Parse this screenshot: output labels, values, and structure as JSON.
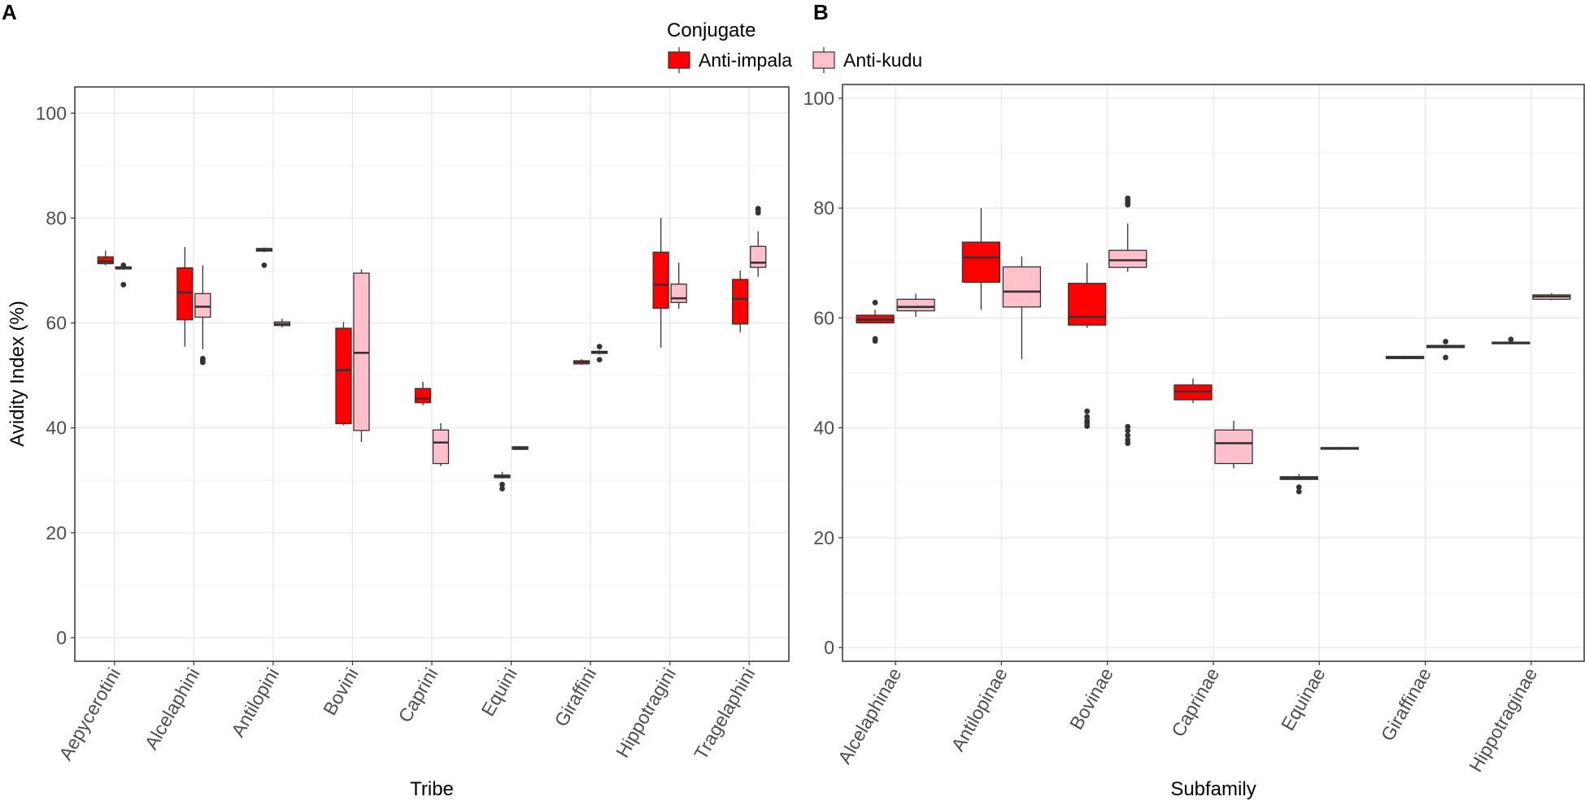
{
  "legend": {
    "title": "Conjugate",
    "items": [
      {
        "label": "Anti-impala",
        "color": "#ff0000"
      },
      {
        "label": "Anti-kudu",
        "color": "#ffc0cb"
      }
    ]
  },
  "chart_data": [
    {
      "panel": "A",
      "type": "box",
      "xlabel": "Tribe",
      "ylabel": "Avidity Index (%)",
      "ylim": [
        -4.5,
        105
      ],
      "yticks": [
        0,
        20,
        40,
        60,
        80,
        100
      ],
      "grid": true,
      "categories": [
        "Aepycerotini",
        "Alcelaphini",
        "Antilopini",
        "Bovini",
        "Caprini",
        "Equini",
        "Giraffini",
        "Hippotragini",
        "Tragelaphini"
      ],
      "series": [
        {
          "name": "Anti-impala",
          "color": "#ff0000",
          "boxes": [
            {
              "min": 71.0,
              "q1": 71.3,
              "median": 71.7,
              "q3": 72.6,
              "max": 73.8,
              "outliers": []
            },
            {
              "min": 55.5,
              "q1": 60.6,
              "median": 65.8,
              "q3": 70.5,
              "max": 74.5,
              "outliers": []
            },
            {
              "min": 73.5,
              "q1": 73.7,
              "median": 74.0,
              "q3": 74.2,
              "max": 74.4,
              "outliers": [
                71.0
              ]
            },
            {
              "min": 40.5,
              "q1": 40.8,
              "median": 51.0,
              "q3": 59.0,
              "max": 60.2,
              "outliers": []
            },
            {
              "min": 44.3,
              "q1": 44.8,
              "median": 45.6,
              "q3": 47.5,
              "max": 48.8,
              "outliers": []
            },
            {
              "min": 30.3,
              "q1": 30.5,
              "median": 30.8,
              "q3": 31.0,
              "max": 31.6,
              "outliers": [
                29.2,
                28.4
              ]
            },
            {
              "min": 52.0,
              "q1": 52.2,
              "median": 52.6,
              "q3": 52.8,
              "max": 53.1,
              "outliers": []
            },
            {
              "min": 55.3,
              "q1": 62.8,
              "median": 67.3,
              "q3": 73.5,
              "max": 80.0,
              "outliers": []
            },
            {
              "min": 58.2,
              "q1": 59.8,
              "median": 64.6,
              "q3": 68.3,
              "max": 70.0,
              "outliers": []
            }
          ]
        },
        {
          "name": "Anti-kudu",
          "color": "#ffc0cb",
          "boxes": [
            {
              "min": 70.1,
              "q1": 70.3,
              "median": 70.5,
              "q3": 70.7,
              "max": 70.9,
              "outliers": [
                71.0,
                67.3
              ]
            },
            {
              "min": 55.0,
              "q1": 61.1,
              "median": 63.1,
              "q3": 65.6,
              "max": 71.0,
              "outliers": [
                53.2,
                52.8,
                52.5
              ]
            },
            {
              "min": 59.2,
              "q1": 59.5,
              "median": 59.8,
              "q3": 60.2,
              "max": 60.8,
              "outliers": []
            },
            {
              "min": 37.3,
              "q1": 39.5,
              "median": 54.3,
              "q3": 69.5,
              "max": 70.2,
              "outliers": []
            },
            {
              "min": 32.7,
              "q1": 33.2,
              "median": 37.2,
              "q3": 39.6,
              "max": 40.9,
              "outliers": []
            },
            {
              "min": 35.8,
              "q1": 35.9,
              "median": 36.2,
              "q3": 36.4,
              "max": 36.5,
              "outliers": []
            },
            {
              "min": 54.0,
              "q1": 54.2,
              "median": 54.4,
              "q3": 54.6,
              "max": 54.8,
              "outliers": [
                55.5,
                53.0
              ]
            },
            {
              "min": 62.7,
              "q1": 63.9,
              "median": 64.7,
              "q3": 67.4,
              "max": 71.5,
              "outliers": []
            },
            {
              "min": 68.8,
              "q1": 70.6,
              "median": 71.5,
              "q3": 74.6,
              "max": 77.5,
              "outliers": [
                81.0,
                81.5,
                81.8
              ]
            }
          ]
        }
      ]
    },
    {
      "panel": "B",
      "type": "box",
      "xlabel": "Subfamily",
      "ylabel": "",
      "ylim": [
        -2.5,
        102.5
      ],
      "yticks": [
        0,
        20,
        40,
        60,
        80,
        100
      ],
      "grid": true,
      "categories": [
        "Alcelaphinae",
        "Antilopinae",
        "Bovinae",
        "Caprinae",
        "Equinae",
        "Giraffinae",
        "Hippotraginae"
      ],
      "series": [
        {
          "name": "Anti-impala",
          "color": "#ff0000",
          "boxes": [
            {
              "min": 59.0,
              "q1": 59.1,
              "median": 59.7,
              "q3": 60.5,
              "max": 61.5,
              "outliers": [
                62.8,
                56.2,
                55.8
              ]
            },
            {
              "min": 61.5,
              "q1": 66.5,
              "median": 71.0,
              "q3": 73.8,
              "max": 80.0,
              "outliers": []
            },
            {
              "min": 58.2,
              "q1": 58.7,
              "median": 60.2,
              "q3": 66.3,
              "max": 70.0,
              "outliers": [
                43.0,
                42.0,
                41.3,
                40.8,
                40.3
              ]
            },
            {
              "min": 44.5,
              "q1": 45.1,
              "median": 46.6,
              "q3": 47.8,
              "max": 49.0,
              "outliers": []
            },
            {
              "min": 30.5,
              "q1": 30.6,
              "median": 30.9,
              "q3": 31.1,
              "max": 31.6,
              "outliers": [
                29.2,
                28.4
              ]
            },
            {
              "min": 52.5,
              "q1": 52.6,
              "median": 52.8,
              "q3": 53.0,
              "max": 53.1,
              "outliers": []
            },
            {
              "min": 55.2,
              "q1": 55.3,
              "median": 55.5,
              "q3": 55.6,
              "max": 55.7,
              "outliers": [
                56.1
              ]
            }
          ]
        },
        {
          "name": "Anti-kudu",
          "color": "#ffc0cb",
          "boxes": [
            {
              "min": 60.2,
              "q1": 61.3,
              "median": 62.0,
              "q3": 63.4,
              "max": 64.4,
              "outliers": []
            },
            {
              "min": 52.5,
              "q1": 62.0,
              "median": 64.8,
              "q3": 69.3,
              "max": 71.2,
              "outliers": []
            },
            {
              "min": 68.4,
              "q1": 69.2,
              "median": 70.5,
              "q3": 72.3,
              "max": 77.2,
              "outliers": [
                80.6,
                81.0,
                81.4,
                81.8,
                40.2,
                39.5,
                38.6,
                37.8,
                37.2
              ]
            },
            {
              "min": 32.6,
              "q1": 33.5,
              "median": 37.2,
              "q3": 39.6,
              "max": 41.3,
              "outliers": []
            },
            {
              "min": 36.0,
              "q1": 36.1,
              "median": 36.3,
              "q3": 36.4,
              "max": 36.5,
              "outliers": []
            },
            {
              "min": 54.5,
              "q1": 54.6,
              "median": 54.8,
              "q3": 55.0,
              "max": 55.1,
              "outliers": [
                55.7,
                52.8
              ]
            },
            {
              "min": 63.2,
              "q1": 63.4,
              "median": 63.9,
              "q3": 64.2,
              "max": 64.5,
              "outliers": []
            }
          ]
        }
      ]
    }
  ]
}
